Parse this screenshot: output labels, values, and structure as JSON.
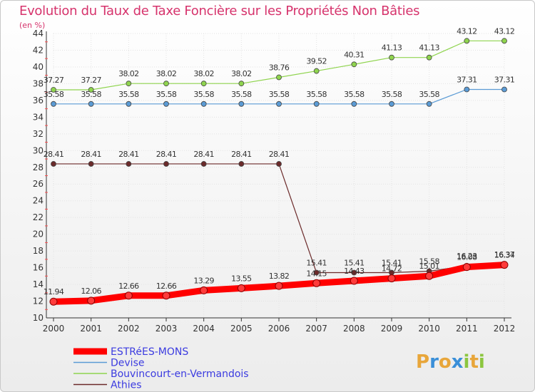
{
  "chart_data": {
    "type": "line",
    "title": "Evolution du Taux de Taxe Foncière sur les Propriétés Non Bâties",
    "ylabel": "(en %)",
    "xlabel": "",
    "ylim": [
      10,
      44
    ],
    "ytick_step": 2,
    "grid": true,
    "legend_position": "bottom-left",
    "categories": [
      "2000",
      "2001",
      "2002",
      "2003",
      "2004",
      "2005",
      "2006",
      "2007",
      "2008",
      "2009",
      "2010",
      "2011",
      "2012"
    ],
    "series": [
      {
        "name": "ESTRéES-MONS",
        "color": "#ff0000",
        "values": [
          11.94,
          12.06,
          12.66,
          12.66,
          13.29,
          13.55,
          13.82,
          14.15,
          14.43,
          14.72,
          15.01,
          16.08,
          16.34
        ],
        "labels": [
          "11.94",
          "12.06",
          "12.66",
          "12.66",
          "13.29",
          "13.55",
          "13.82",
          "14.15",
          "14.43",
          "14.72",
          "15.01",
          "16.08",
          "16.34"
        ]
      },
      {
        "name": "Devise",
        "color": "#5b9bd5",
        "values": [
          35.58,
          35.58,
          35.58,
          35.58,
          35.58,
          35.58,
          35.58,
          35.58,
          35.58,
          35.58,
          35.58,
          37.31,
          37.31
        ],
        "labels": [
          "35.58",
          "35.58",
          "35.58",
          "35.58",
          "35.58",
          "35.58",
          "35.58",
          "35.58",
          "35.58",
          "35.58",
          "35.58",
          "37.31",
          "37.31"
        ]
      },
      {
        "name": "Bouvincourt-en-Vermandois",
        "color": "#8fd44e",
        "values": [
          37.27,
          37.27,
          38.02,
          38.02,
          38.02,
          38.02,
          38.76,
          39.52,
          40.31,
          41.13,
          41.13,
          43.12,
          43.12
        ],
        "labels": [
          "37.27",
          "37.27",
          "38.02",
          "38.02",
          "38.02",
          "38.02",
          "38.76",
          "39.52",
          "40.31",
          "41.13",
          "41.13",
          "43.12",
          "43.12"
        ]
      },
      {
        "name": "Athies",
        "color": "#6b2a2a",
        "values": [
          28.41,
          28.41,
          28.41,
          28.41,
          28.41,
          28.41,
          28.41,
          15.41,
          15.41,
          15.41,
          15.58,
          16.23,
          16.37
        ],
        "labels": [
          "28.41",
          "28.41",
          "28.41",
          "28.41",
          "28.41",
          "28.41",
          "28.41",
          "15.41",
          "15.41",
          "15.41",
          "15.58",
          "16.23",
          "16.37"
        ]
      }
    ]
  },
  "logo": {
    "letters": [
      "P",
      "r",
      "o",
      "x",
      "i",
      "t",
      "i"
    ],
    "colors": [
      "#e8a63a",
      "#3a8fd8",
      "#e8a63a",
      "#3a8fd8",
      "#8cc63f",
      "#e8a63a",
      "#8cc63f"
    ]
  }
}
